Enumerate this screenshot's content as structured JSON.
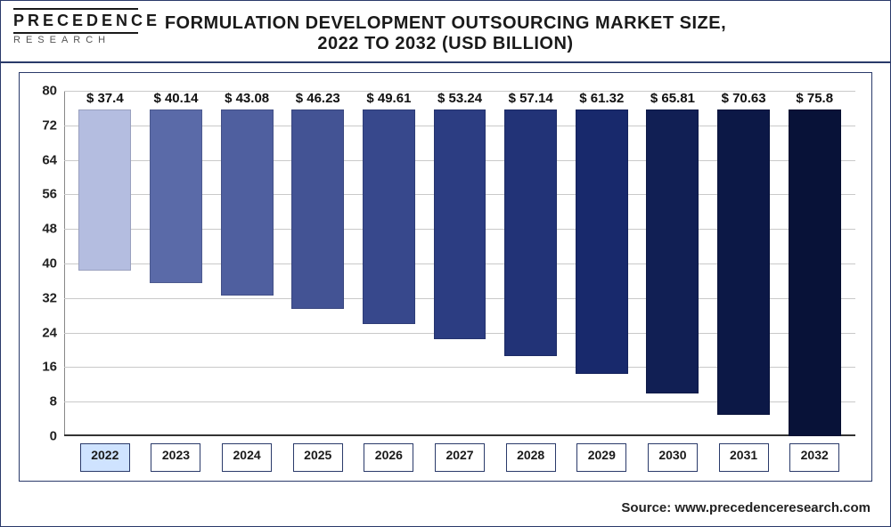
{
  "logo": {
    "top": "PRECEDENCE",
    "bottom": "RESEARCH"
  },
  "title": "FORMULATION DEVELOPMENT OUTSOURCING MARKET SIZE,",
  "subtitle": "2022 TO 2032 (USD BILLION)",
  "source_label": "Source: www.precedenceresearch.com",
  "chart": {
    "type": "bar",
    "ylim": [
      0,
      80
    ],
    "ytick_step": 8,
    "yticks": [
      0,
      8,
      16,
      24,
      32,
      40,
      48,
      56,
      64,
      72,
      80
    ],
    "grid_color": "#c9c9c9",
    "background_color": "#ffffff",
    "border_color": "#2a3a6a",
    "value_prefix": "$ ",
    "label_fontsize": 15,
    "tick_fontsize": 15,
    "title_fontsize": 20,
    "bar_width": 0.74,
    "highlight_category": "2022",
    "highlight_bg": "#cfe3ff",
    "categories": [
      "2022",
      "2023",
      "2024",
      "2025",
      "2026",
      "2027",
      "2028",
      "2029",
      "2030",
      "2031",
      "2032"
    ],
    "values": [
      37.4,
      40.14,
      43.08,
      46.23,
      49.61,
      53.24,
      57.14,
      61.32,
      65.81,
      70.63,
      75.8
    ],
    "value_labels": [
      "37.4",
      "40.14",
      "43.08",
      "46.23",
      "49.61",
      "53.24",
      "57.14",
      "61.32",
      "65.81",
      "70.63",
      "75.8"
    ],
    "bar_colors": [
      "#b4bde0",
      "#5a6aa8",
      "#4f5f9f",
      "#435394",
      "#37488c",
      "#2c3d82",
      "#223377",
      "#18296c",
      "#111f54",
      "#0c1846",
      "#081238"
    ]
  }
}
